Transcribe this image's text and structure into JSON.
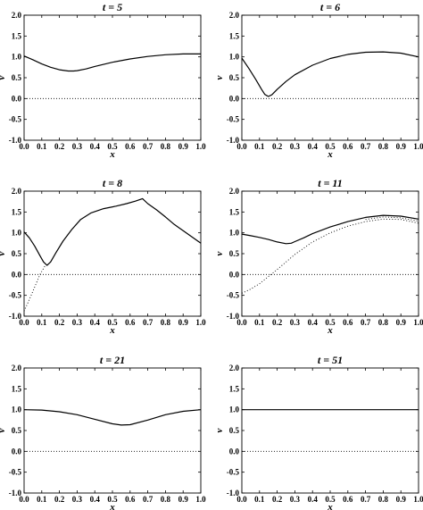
{
  "chart_data": [
    {
      "type": "line",
      "title": "t = 5",
      "xlabel": "x",
      "ylabel": "v",
      "xlim": [
        0.0,
        1.0
      ],
      "ylim": [
        -1.0,
        2.0
      ],
      "x_ticks": [
        "0.0",
        "0.1",
        "0.2",
        "0.3",
        "0.4",
        "0.5",
        "0.6",
        "0.7",
        "0.8",
        "0.9",
        "1.0"
      ],
      "y_ticks": [
        "-1.0",
        "-0.5",
        "0.0",
        "0.5",
        "1.0",
        "1.5",
        "2.0"
      ],
      "reference_line": {
        "y": 0.0,
        "style": "dotted"
      },
      "series": [
        {
          "style": "solid",
          "x": [
            0.0,
            0.05,
            0.1,
            0.15,
            0.2,
            0.25,
            0.28,
            0.3,
            0.35,
            0.4,
            0.5,
            0.6,
            0.7,
            0.8,
            0.9,
            1.0
          ],
          "y": [
            1.02,
            0.93,
            0.83,
            0.75,
            0.69,
            0.66,
            0.66,
            0.67,
            0.71,
            0.77,
            0.87,
            0.95,
            1.01,
            1.05,
            1.07,
            1.07
          ]
        }
      ]
    },
    {
      "type": "line",
      "title": "t = 6",
      "xlabel": "x",
      "ylabel": "v",
      "xlim": [
        0.0,
        1.0
      ],
      "ylim": [
        -1.0,
        2.0
      ],
      "x_ticks": [
        "0.0",
        "0.1",
        "0.2",
        "0.3",
        "0.4",
        "0.5",
        "0.6",
        "0.7",
        "0.8",
        "0.9",
        "1.0"
      ],
      "y_ticks": [
        "-1.0",
        "-0.5",
        "0.0",
        "0.5",
        "1.0",
        "1.5",
        "2.0"
      ],
      "reference_line": {
        "y": 0.0,
        "style": "dotted"
      },
      "series": [
        {
          "style": "solid",
          "x": [
            0.0,
            0.04,
            0.08,
            0.11,
            0.13,
            0.15,
            0.17,
            0.2,
            0.25,
            0.3,
            0.4,
            0.5,
            0.6,
            0.7,
            0.8,
            0.9,
            1.0
          ],
          "y": [
            0.97,
            0.72,
            0.45,
            0.23,
            0.1,
            0.05,
            0.09,
            0.22,
            0.41,
            0.57,
            0.8,
            0.96,
            1.06,
            1.11,
            1.12,
            1.09,
            1.0
          ]
        }
      ]
    },
    {
      "type": "line",
      "title": "t = 8",
      "xlabel": "x",
      "ylabel": "v",
      "xlim": [
        0.0,
        1.0
      ],
      "ylim": [
        -1.0,
        2.0
      ],
      "x_ticks": [
        "0.0",
        "0.1",
        "0.2",
        "0.3",
        "0.4",
        "0.5",
        "0.6",
        "0.7",
        "0.8",
        "0.9",
        "1.0"
      ],
      "y_ticks": [
        "-1.0",
        "-0.5",
        "0.0",
        "0.5",
        "1.0",
        "1.5",
        "2.0"
      ],
      "reference_line": {
        "y": 0.0,
        "style": "dotted"
      },
      "series": [
        {
          "style": "solid",
          "x": [
            0.0,
            0.03,
            0.06,
            0.09,
            0.11,
            0.13,
            0.15,
            0.18,
            0.22,
            0.27,
            0.32,
            0.38,
            0.45,
            0.52,
            0.58,
            0.63,
            0.67,
            0.7,
            0.75,
            0.8,
            0.85,
            0.9,
            0.95,
            1.0
          ],
          "y": [
            1.02,
            0.88,
            0.68,
            0.45,
            0.3,
            0.22,
            0.3,
            0.52,
            0.8,
            1.08,
            1.32,
            1.48,
            1.58,
            1.64,
            1.7,
            1.76,
            1.82,
            1.7,
            1.55,
            1.38,
            1.2,
            1.05,
            0.9,
            0.75
          ]
        },
        {
          "style": "dotted",
          "x": [
            0.0,
            0.03,
            0.06,
            0.09,
            0.12
          ],
          "y": [
            -0.88,
            -0.6,
            -0.3,
            0.0,
            0.22
          ]
        }
      ]
    },
    {
      "type": "line",
      "title": "t = 11",
      "xlabel": "x",
      "ylabel": "v",
      "xlim": [
        0.0,
        1.0
      ],
      "ylim": [
        -1.0,
        2.0
      ],
      "x_ticks": [
        "0.0",
        "0.1",
        "0.2",
        "0.3",
        "0.4",
        "0.5",
        "0.6",
        "0.7",
        "0.8",
        "0.9",
        "1.0"
      ],
      "y_ticks": [
        "-1.0",
        "-0.5",
        "0.0",
        "0.5",
        "1.0",
        "1.5",
        "2.0"
      ],
      "reference_line": {
        "y": 0.0,
        "style": "dotted"
      },
      "series": [
        {
          "style": "solid",
          "x": [
            0.0,
            0.05,
            0.1,
            0.15,
            0.2,
            0.25,
            0.28,
            0.3,
            0.35,
            0.4,
            0.5,
            0.6,
            0.7,
            0.8,
            0.9,
            1.0
          ],
          "y": [
            0.97,
            0.93,
            0.89,
            0.84,
            0.78,
            0.74,
            0.75,
            0.79,
            0.88,
            0.98,
            1.14,
            1.27,
            1.37,
            1.42,
            1.4,
            1.33
          ]
        },
        {
          "style": "dotted",
          "x": [
            0.0,
            0.05,
            0.1,
            0.15,
            0.2,
            0.25,
            0.3,
            0.35,
            0.4,
            0.5,
            0.6,
            0.7,
            0.8,
            0.9,
            1.0
          ],
          "y": [
            -0.45,
            -0.35,
            -0.22,
            -0.05,
            0.12,
            0.3,
            0.48,
            0.63,
            0.78,
            1.0,
            1.16,
            1.27,
            1.33,
            1.32,
            1.23
          ]
        },
        {
          "style": "dotted",
          "x": [
            0.7,
            0.8,
            0.9,
            1.0
          ],
          "y": [
            1.32,
            1.38,
            1.36,
            1.28
          ]
        }
      ]
    },
    {
      "type": "line",
      "title": "t = 21",
      "xlabel": "x",
      "ylabel": "v",
      "xlim": [
        0.0,
        1.0
      ],
      "ylim": [
        -1.0,
        2.0
      ],
      "x_ticks": [
        "0.0",
        "0.1",
        "0.2",
        "0.3",
        "0.4",
        "0.5",
        "0.6",
        "0.7",
        "0.8",
        "0.9",
        "1.0"
      ],
      "y_ticks": [
        "-1.0",
        "-0.5",
        "0.0",
        "0.5",
        "1.0",
        "1.5",
        "2.0"
      ],
      "reference_line": {
        "y": 0.0,
        "style": "dotted"
      },
      "series": [
        {
          "style": "solid",
          "x": [
            0.0,
            0.1,
            0.2,
            0.3,
            0.4,
            0.5,
            0.55,
            0.6,
            0.7,
            0.8,
            0.9,
            1.0
          ],
          "y": [
            1.0,
            0.99,
            0.95,
            0.88,
            0.77,
            0.66,
            0.63,
            0.64,
            0.75,
            0.88,
            0.96,
            1.0
          ]
        }
      ]
    },
    {
      "type": "line",
      "title": "t = 51",
      "xlabel": "x",
      "ylabel": "v",
      "xlim": [
        0.0,
        1.0
      ],
      "ylim": [
        -1.0,
        2.0
      ],
      "x_ticks": [
        "0.0",
        "0.1",
        "0.2",
        "0.3",
        "0.4",
        "0.5",
        "0.6",
        "0.7",
        "0.8",
        "0.9",
        "1.0"
      ],
      "y_ticks": [
        "-1.0",
        "-0.5",
        "0.0",
        "0.5",
        "1.0",
        "1.5",
        "2.0"
      ],
      "reference_line": {
        "y": 0.0,
        "style": "dotted"
      },
      "series": [
        {
          "style": "solid",
          "x": [
            0.0,
            0.2,
            0.4,
            0.6,
            0.8,
            1.0
          ],
          "y": [
            1.0,
            1.0,
            1.0,
            1.0,
            1.0,
            1.0
          ]
        }
      ]
    }
  ]
}
